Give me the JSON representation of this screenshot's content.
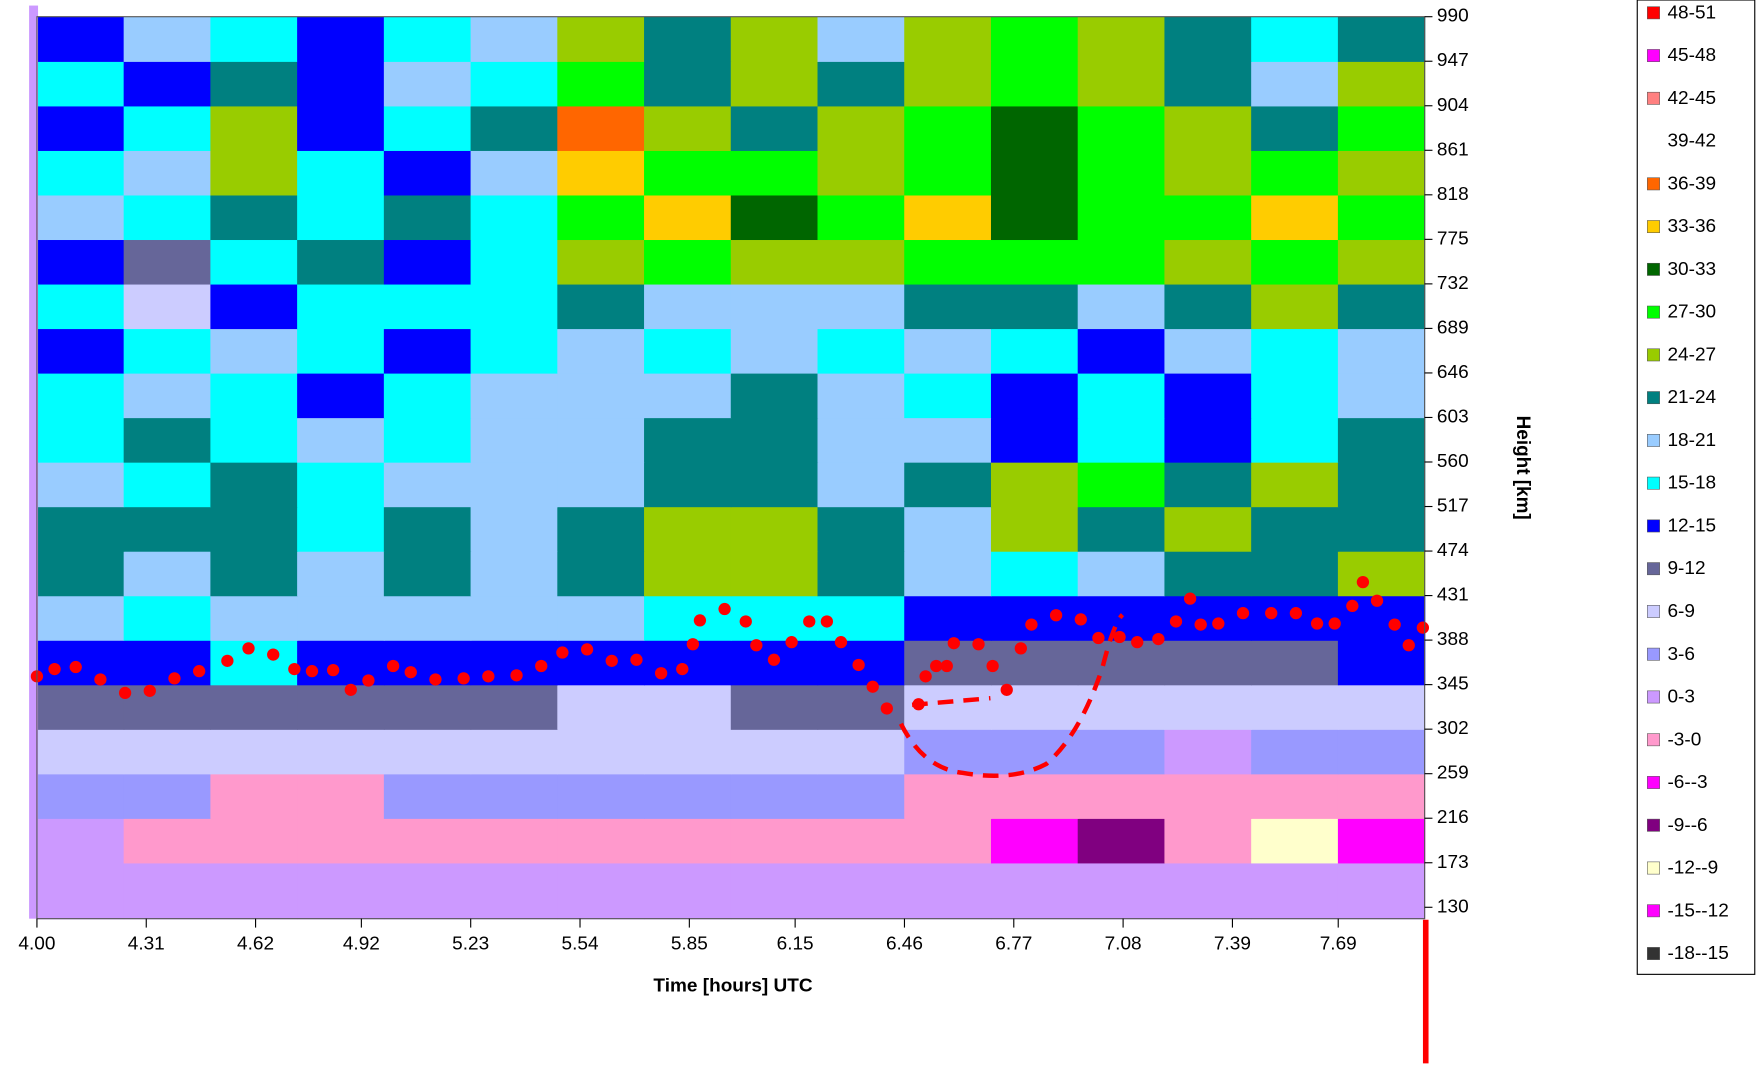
{
  "chart_data": {
    "type": "contour",
    "x_label": "Time  [hours] UTC",
    "y_label": "Height [km]",
    "xlim": [
      4.0,
      7.935
    ],
    "ylim": [
      119,
      990
    ],
    "xticks": [
      {
        "value": 4,
        "label": "4.00"
      },
      4.31,
      4.62,
      4.92,
      5.23,
      5.54,
      5.85,
      6.15,
      6.46,
      6.77,
      7.08,
      7.39,
      7.69
    ],
    "yticks": [
      130,
      173,
      216,
      259,
      302,
      345,
      388,
      431,
      474,
      517,
      560,
      603,
      646,
      689,
      732,
      775,
      818,
      861,
      904,
      947,
      990
    ],
    "levels": [
      -18,
      -15,
      -12,
      -9,
      -6,
      -3,
      0,
      3,
      6,
      9,
      12,
      15,
      18,
      21,
      24,
      27,
      30,
      33,
      36,
      39,
      42,
      45,
      48,
      51
    ],
    "legend": [
      {
        "label": "48-51",
        "color": "#ff0000"
      },
      {
        "label": "45-48",
        "color": "#ff00ff"
      },
      {
        "label": "42-45",
        "color": "#ff8080"
      },
      {
        "label": "39-42",
        "color": "#ffffff"
      },
      {
        "label": "36-39",
        "color": "#ff6600"
      },
      {
        "label": "33-36",
        "color": "#ffcc00"
      },
      {
        "label": "30-33",
        "color": "#006600"
      },
      {
        "label": "27-30",
        "color": "#00ff00"
      },
      {
        "label": "24-27",
        "color": "#99cc00"
      },
      {
        "label": "21-24",
        "color": "#008080"
      },
      {
        "label": "18-21",
        "color": "#99ccff"
      },
      {
        "label": "15-18",
        "color": "#00ffff"
      },
      {
        "label": "12-15",
        "color": "#0000ff"
      },
      {
        "label": "9-12",
        "color": "#666699"
      },
      {
        "label": "6-9",
        "color": "#ccccff"
      },
      {
        "label": "3-6",
        "color": "#9999ff"
      },
      {
        "label": "0-3",
        "color": "#cc99ff"
      },
      {
        "label": "-3-0",
        "color": "#ff99cc"
      },
      {
        "label": "-6--3",
        "color": "#ff00ff"
      },
      {
        "label": "-9--6",
        "color": "#800080"
      },
      {
        "label": "-12--9",
        "color": "#ffffcc"
      },
      {
        "label": "-15--12",
        "color": "#ff00ff"
      },
      {
        "label": "-18--15",
        "color": "#333333"
      }
    ],
    "z": [
      [
        1.5,
        1.5,
        1.5,
        1.5,
        1.5,
        1.5,
        1.5,
        1.5,
        1.5,
        1.5,
        1.5,
        1.5,
        1.5,
        1.5,
        1.5,
        1.5
      ],
      [
        1.5,
        -1.5,
        -1.5,
        -1.5,
        -1.5,
        -1.5,
        -1.5,
        -1.5,
        -1.5,
        -1.5,
        -1.5,
        -4.5,
        -7.5,
        -1.5,
        -10.5,
        -4.5
      ],
      [
        4.5,
        4.5,
        -1.5,
        -1.5,
        4.5,
        4.5,
        4.5,
        4.5,
        4.5,
        4.5,
        -1.5,
        -1.5,
        -1.5,
        -1.5,
        -1.5,
        -1.5
      ],
      [
        7.5,
        7.5,
        7.5,
        7.5,
        7.5,
        7.5,
        7.5,
        7.5,
        7.5,
        7.5,
        4.5,
        4.5,
        4.5,
        1.5,
        4.5,
        4.5
      ],
      [
        10.5,
        10.5,
        10.5,
        10.5,
        10.5,
        10.5,
        7.5,
        7.5,
        10.5,
        10.5,
        7.5,
        7.5,
        7.5,
        7.5,
        7.5,
        7.5
      ],
      [
        13.5,
        13.5,
        16.5,
        13.5,
        13.5,
        13.5,
        13.5,
        13.5,
        13.5,
        13.5,
        10.5,
        10.5,
        10.5,
        10.5,
        10.5,
        13.5
      ],
      [
        19.5,
        16.5,
        19.5,
        19.5,
        19.5,
        19.5,
        19.5,
        16.5,
        16.5,
        16.5,
        13.5,
        13.5,
        13.5,
        13.5,
        13.5,
        13.5
      ],
      [
        22.5,
        19.5,
        22.5,
        19.5,
        22.5,
        19.5,
        22.5,
        25.5,
        25.5,
        22.5,
        19.5,
        16.5,
        19.5,
        22.5,
        22.5,
        25.5
      ],
      [
        22.5,
        22.5,
        22.5,
        16.5,
        22.5,
        19.5,
        22.5,
        25.5,
        25.5,
        22.5,
        19.5,
        25.5,
        22.5,
        25.5,
        22.5,
        22.5
      ],
      [
        19.5,
        16.5,
        22.5,
        16.5,
        19.5,
        19.5,
        19.5,
        22.5,
        22.5,
        19.5,
        22.5,
        25.5,
        28.5,
        22.5,
        25.5,
        22.5
      ],
      [
        16.5,
        22.5,
        16.5,
        19.5,
        16.5,
        19.5,
        19.5,
        22.5,
        22.5,
        19.5,
        19.5,
        13.5,
        16.5,
        13.5,
        16.5,
        22.5
      ],
      [
        16.5,
        19.5,
        16.5,
        13.5,
        16.5,
        19.5,
        19.5,
        19.5,
        22.5,
        19.5,
        16.5,
        13.5,
        16.5,
        13.5,
        16.5,
        19.5
      ],
      [
        13.5,
        16.5,
        19.5,
        16.5,
        13.5,
        16.5,
        19.5,
        16.5,
        19.5,
        16.5,
        19.5,
        16.5,
        13.5,
        19.5,
        16.5,
        19.5
      ],
      [
        16.5,
        7.5,
        13.5,
        16.5,
        16.5,
        16.5,
        22.5,
        19.5,
        19.5,
        19.5,
        22.5,
        22.5,
        19.5,
        22.5,
        25.5,
        22.5
      ],
      [
        13.5,
        10.5,
        16.5,
        22.5,
        13.5,
        16.5,
        25.5,
        28.5,
        25.5,
        25.5,
        28.5,
        28.5,
        28.5,
        25.5,
        28.5,
        25.5
      ],
      [
        19.5,
        16.5,
        22.5,
        16.5,
        22.5,
        16.5,
        28.5,
        34.5,
        31.5,
        28.5,
        34.5,
        31.5,
        28.5,
        28.5,
        34.5,
        28.5
      ],
      [
        16.5,
        19.5,
        25.5,
        16.5,
        13.5,
        19.5,
        34.5,
        28.5,
        28.5,
        25.5,
        28.5,
        31.5,
        28.5,
        25.5,
        28.5,
        25.5
      ],
      [
        13.5,
        16.5,
        25.5,
        13.5,
        16.5,
        22.5,
        37.5,
        25.5,
        22.5,
        25.5,
        28.5,
        31.5,
        28.5,
        25.5,
        22.5,
        28.5
      ],
      [
        16.5,
        13.5,
        22.5,
        13.5,
        19.5,
        16.5,
        28.5,
        22.5,
        25.5,
        22.5,
        25.5,
        28.5,
        25.5,
        22.5,
        19.5,
        25.5
      ],
      [
        13.5,
        19.5,
        16.5,
        13.5,
        16.5,
        19.5,
        25.5,
        22.5,
        25.5,
        19.5,
        25.5,
        28.5,
        25.5,
        22.5,
        16.5,
        22.5
      ]
    ],
    "points": {
      "color": "#ff0000",
      "x": [
        4.0,
        4.05,
        4.11,
        4.18,
        4.25,
        4.32,
        4.39,
        4.46,
        4.54,
        4.6,
        4.67,
        4.73,
        4.78,
        4.84,
        4.89,
        4.94,
        5.01,
        5.06,
        5.13,
        5.21,
        5.28,
        5.36,
        5.43,
        5.49,
        5.56,
        5.63,
        5.7,
        5.77,
        5.83,
        5.86,
        5.88,
        5.95,
        6.01,
        6.04,
        6.09,
        6.14,
        6.19,
        6.24,
        6.28,
        6.33,
        6.37,
        6.41,
        6.5,
        6.52,
        6.55,
        6.58,
        6.6,
        6.67,
        6.71,
        6.75,
        6.79,
        6.82,
        6.89,
        6.96,
        7.01,
        7.07,
        7.12,
        7.18,
        7.23,
        7.27,
        7.3,
        7.35,
        7.42,
        7.5,
        7.57,
        7.63,
        7.68,
        7.73,
        7.76,
        7.8,
        7.85,
        7.89,
        7.93
      ],
      "values": [
        353,
        360,
        362,
        350,
        337,
        339,
        351,
        358,
        368,
        380,
        374,
        360,
        358,
        359,
        340,
        349,
        363,
        357,
        350,
        351,
        353,
        354,
        363,
        376,
        379,
        368,
        369,
        356,
        360,
        384,
        407,
        418,
        406,
        383,
        369,
        386,
        406,
        406,
        386,
        364,
        343,
        322,
        326,
        353,
        363,
        363,
        385,
        384,
        363,
        340,
        380,
        403,
        412,
        408,
        390,
        391,
        386,
        389,
        406,
        428,
        403,
        404,
        414,
        414,
        414,
        404,
        404,
        421,
        444,
        426,
        403,
        383,
        400
      ]
    }
  }
}
